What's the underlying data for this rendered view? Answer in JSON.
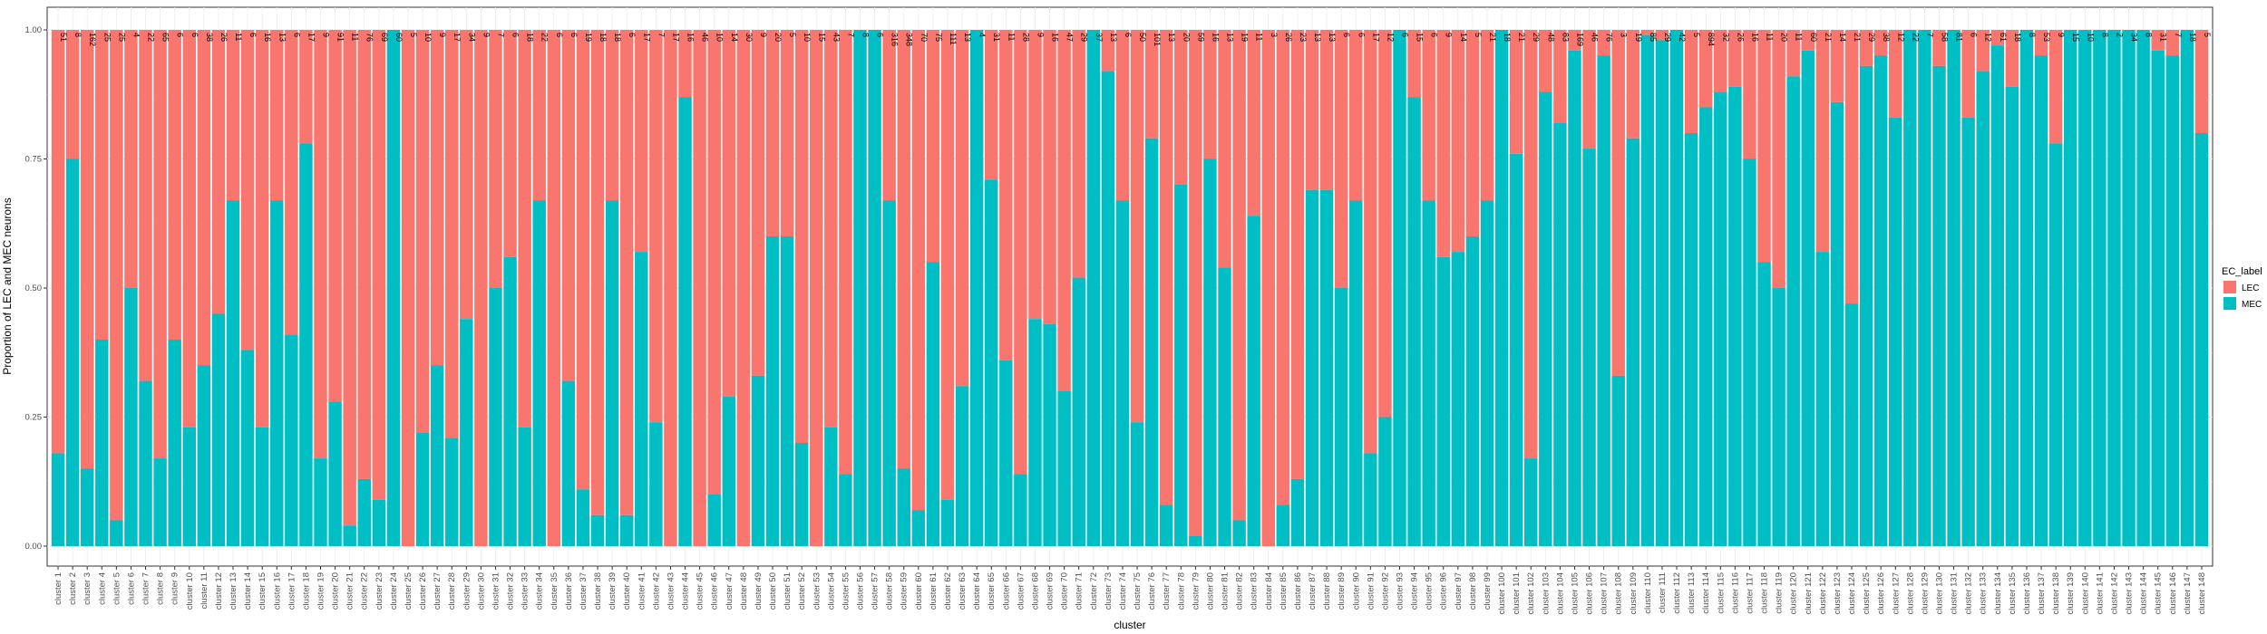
{
  "chart_data": {
    "type": "bar",
    "stacked": true,
    "title": "",
    "xlabel": "cluster",
    "ylabel": "Proportion of LEC and MEC neurons",
    "ylim": [
      0,
      1
    ],
    "yticks": [
      "0.00",
      "0.25",
      "0.50",
      "0.75",
      "1.00"
    ],
    "grid": true,
    "legend": {
      "title": "EC_label",
      "placement": "right",
      "entries": [
        {
          "name": "LEC",
          "color": "#F8766D"
        },
        {
          "name": "MEC",
          "color": "#00BFC4"
        }
      ]
    },
    "series": [
      {
        "name": "LEC",
        "color": "#F8766D"
      },
      {
        "name": "MEC",
        "color": "#00BFC4"
      }
    ],
    "categories_prefix": "cluster",
    "n_clusters": 148,
    "mec_proportion": [
      0.18,
      0.75,
      0.15,
      0.4,
      0.05,
      0.5,
      0.32,
      0.17,
      0.4,
      0.23,
      0.35,
      0.45,
      0.67,
      0.38,
      0.23,
      0.67,
      0.41,
      0.78,
      0.17,
      0.28,
      0.04,
      0.13,
      0.09,
      1.0,
      0.0,
      0.22,
      0.35,
      0.21,
      0.44,
      0.0,
      0.5,
      0.56,
      0.23,
      0.67,
      0.0,
      0.32,
      0.11,
      0.06,
      0.67,
      0.06,
      0.57,
      0.24,
      0.0,
      0.87,
      0.0,
      0.1,
      0.29,
      0.0,
      0.33,
      0.6,
      0.6,
      0.2,
      0.0,
      0.23,
      0.14,
      1.0,
      1.0,
      0.67,
      0.15,
      0.07,
      0.55,
      0.09,
      0.31,
      1.0,
      0.71,
      0.36,
      0.14,
      0.44,
      0.43,
      0.3,
      0.52,
      1.0,
      0.92,
      0.67,
      0.24,
      0.79,
      0.08,
      0.7,
      0.02,
      0.75,
      0.54,
      0.05,
      0.64,
      0.0,
      0.08,
      0.13,
      0.69,
      0.69,
      0.5,
      0.67,
      0.18,
      0.25,
      1.0,
      0.87,
      0.67,
      0.56,
      0.57,
      0.6,
      0.67,
      1.0,
      0.76,
      0.17,
      0.88,
      0.82,
      0.96,
      0.77,
      0.95,
      0.33,
      0.79,
      0.99,
      0.98,
      1.0,
      0.8,
      0.85,
      0.88,
      0.89,
      0.75,
      0.55,
      0.5,
      0.91,
      0.96,
      0.57,
      0.86,
      0.47,
      0.93,
      0.95,
      0.83,
      1.0,
      1.0,
      0.93,
      1.0,
      0.83,
      0.92,
      0.97,
      0.89,
      1.0,
      0.95,
      0.78,
      1.0,
      1.0,
      1.0,
      1.0,
      1.0,
      1.0,
      0.96,
      0.95,
      1.0,
      0.8
    ],
    "counts": [
      "51",
      "8",
      "162",
      "25",
      "25",
      "4",
      "22",
      "65",
      "6",
      "6",
      "38",
      "26",
      "11",
      "6",
      "16",
      "13",
      "6",
      "17",
      "9",
      "91",
      "11",
      "76",
      "69",
      "60",
      "5",
      "10",
      "9",
      "17",
      "34",
      "9",
      "7",
      "6",
      "18",
      "22",
      "6",
      "6",
      "19",
      "18",
      "18",
      "6",
      "17",
      "7",
      "17",
      "16",
      "46",
      "10",
      "14",
      "30",
      "9",
      "20",
      "5",
      "10",
      "15",
      "43",
      "7",
      "8",
      "6",
      "316",
      "348",
      "70",
      "75",
      "111",
      "13",
      "4",
      "31",
      "11",
      "28",
      "9",
      "16",
      "47",
      "29",
      "37",
      "13",
      "6",
      "50",
      "101",
      "13",
      "20",
      "59",
      "16",
      "13",
      "19",
      "11",
      "3",
      "26",
      "23",
      "13",
      "13",
      "6",
      "6",
      "17",
      "12",
      "6",
      "15",
      "6",
      "9",
      "14",
      "5",
      "21",
      "18",
      "21",
      "29",
      "48",
      "83",
      "169",
      "46",
      "76",
      "3",
      "19",
      "85",
      "29",
      "42",
      "5",
      "894",
      "32",
      "26",
      "16",
      "11",
      "20",
      "11",
      "60",
      "21",
      "14",
      "21",
      "29",
      "38",
      "12",
      "22",
      "7",
      "58",
      "81",
      "6",
      "12",
      "61",
      "18",
      "8",
      "53",
      "9",
      "15",
      "10",
      "8",
      "2",
      "34",
      "8",
      "31",
      "7",
      "18",
      "5"
    ]
  }
}
